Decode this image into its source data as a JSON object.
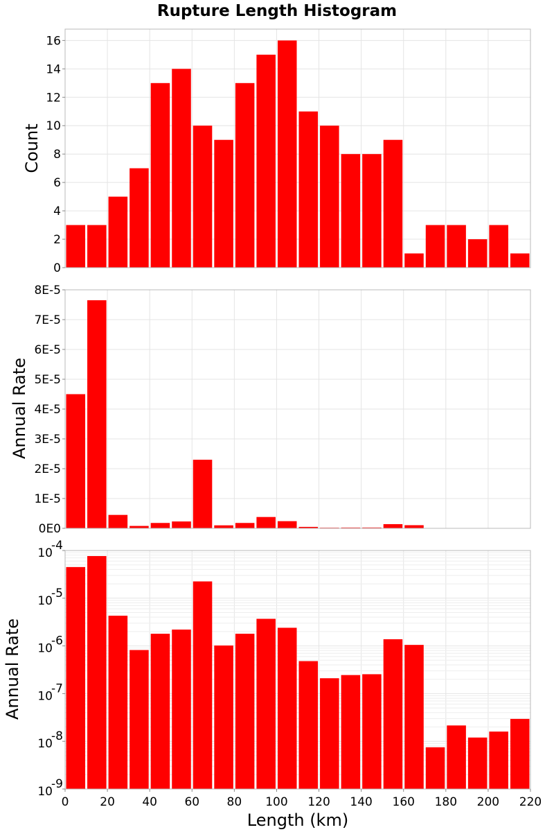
{
  "chart_data": [
    {
      "type": "bar",
      "title": "Rupture Length Histogram",
      "ylabel": "Count",
      "xlim": [
        0,
        220
      ],
      "ylim": [
        0,
        16.8
      ],
      "yscale": "linear",
      "yticks": [
        0,
        2,
        4,
        6,
        8,
        10,
        12,
        14,
        16
      ],
      "ytick_labels": [
        "0",
        "2",
        "4",
        "6",
        "8",
        "10",
        "12",
        "14",
        "16"
      ],
      "grid": true,
      "bin_width": 10,
      "x": [
        5,
        15,
        25,
        35,
        45,
        55,
        65,
        75,
        85,
        95,
        105,
        115,
        125,
        135,
        145,
        155,
        165,
        175,
        185,
        195,
        205,
        215
      ],
      "values": [
        3,
        3,
        5,
        7,
        13,
        14,
        10,
        9,
        13,
        15,
        16,
        11,
        10,
        8,
        8,
        9,
        1,
        3,
        3,
        2,
        3,
        1
      ],
      "color": "#ff0000"
    },
    {
      "type": "bar",
      "ylabel": "Annual Rate",
      "xlim": [
        0,
        220
      ],
      "ylim": [
        0,
        8e-05
      ],
      "yscale": "linear",
      "yticks": [
        0,
        1e-05,
        2e-05,
        3e-05,
        4e-05,
        5e-05,
        6e-05,
        7e-05,
        8e-05
      ],
      "ytick_labels": [
        "0E0",
        "1E-5",
        "2E-5",
        "3E-5",
        "4E-5",
        "5E-5",
        "6E-5",
        "7E-5",
        "8E-5"
      ],
      "grid": true,
      "bin_width": 10,
      "x": [
        5,
        15,
        25,
        35,
        45,
        55,
        65,
        75,
        85,
        95,
        105,
        115,
        125,
        135,
        145,
        155,
        165,
        175,
        185,
        195,
        205,
        215
      ],
      "values": [
        4.5e-05,
        7.65e-05,
        4.5e-06,
        8e-07,
        1.8e-06,
        2.3e-06,
        2.3e-05,
        1e-06,
        1.8e-06,
        3.8e-06,
        2.4e-06,
        4.8e-07,
        2.1e-07,
        2.5e-07,
        2.6e-07,
        1.4e-06,
        1.05e-06,
        7.5e-09,
        2.2e-08,
        1.2e-08,
        1.6e-08,
        3e-08
      ],
      "color": "#ff0000"
    },
    {
      "type": "bar",
      "ylabel": "Annual Rate",
      "xlabel": "Length (km)",
      "xlim": [
        0,
        220
      ],
      "xticks": [
        0,
        20,
        40,
        60,
        80,
        100,
        120,
        140,
        160,
        180,
        200,
        220
      ],
      "xtick_labels": [
        "0",
        "20",
        "40",
        "60",
        "80",
        "100",
        "120",
        "140",
        "160",
        "180",
        "200",
        "220"
      ],
      "ylim": [
        1e-09,
        0.0001
      ],
      "yscale": "log",
      "yticks": [
        1e-09,
        1e-08,
        1e-07,
        1e-06,
        1e-05,
        0.0001
      ],
      "ytick_bases": [
        "10",
        "10",
        "10",
        "10",
        "10",
        "10"
      ],
      "ytick_exponents": [
        "-9",
        "-8",
        "-7",
        "-6",
        "-5",
        "-4"
      ],
      "grid": true,
      "bin_width": 10,
      "x": [
        5,
        15,
        25,
        35,
        45,
        55,
        65,
        75,
        85,
        95,
        105,
        115,
        125,
        135,
        145,
        155,
        165,
        175,
        185,
        195,
        205,
        215
      ],
      "values": [
        4.5e-05,
        7.65e-05,
        4.3e-06,
        8.2e-07,
        1.8e-06,
        2.2e-06,
        2.25e-05,
        1.02e-06,
        1.8e-06,
        3.7e-06,
        2.4e-06,
        4.8e-07,
        2.1e-07,
        2.45e-07,
        2.55e-07,
        1.38e-06,
        1.05e-06,
        7.5e-09,
        2.15e-08,
        1.2e-08,
        1.6e-08,
        2.95e-08
      ],
      "color": "#ff0000"
    }
  ]
}
